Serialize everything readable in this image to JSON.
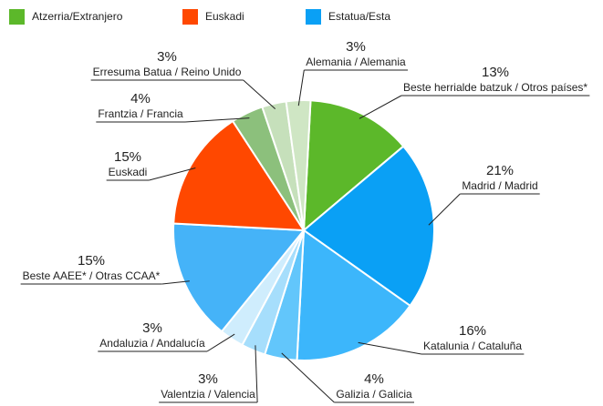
{
  "chart_data": {
    "type": "pie",
    "legend": [
      {
        "name": "Atzerria/Extranjero",
        "color": "#5cb82a"
      },
      {
        "name": "Euskadi",
        "color": "#ff4800"
      },
      {
        "name": "Estatua/Esta",
        "color": "#0aa0f5"
      }
    ],
    "categories": [
      "Beste herrialde batzuk / Otros países*",
      "Madrid / Madrid",
      "Katalunia / Cataluña",
      "Galizia / Galicia",
      "Valentzia / Valencia",
      "Andaluzia / Andalucía",
      "Beste AAEE* / Otras CCAA*",
      "Euskadi",
      "Frantzia / Francia",
      "Erresuma Batua / Reino Unido",
      "Alemania / Alemania"
    ],
    "values": [
      13,
      21,
      16,
      4,
      3,
      3,
      15,
      15,
      4,
      3,
      3
    ],
    "value_labels": [
      "13%",
      "21%",
      "16%",
      "4%",
      "3%",
      "3%",
      "15%",
      "15%",
      "4%",
      "3%",
      "3%"
    ],
    "colors": [
      "#5cb82a",
      "#0aa0f5",
      "#3cb6fb",
      "#62c6fb",
      "#a6defc",
      "#cfedfd",
      "#45b3f8",
      "#ff4800",
      "#8cc07c",
      "#c6e0bb",
      "#cfe6c4"
    ]
  }
}
